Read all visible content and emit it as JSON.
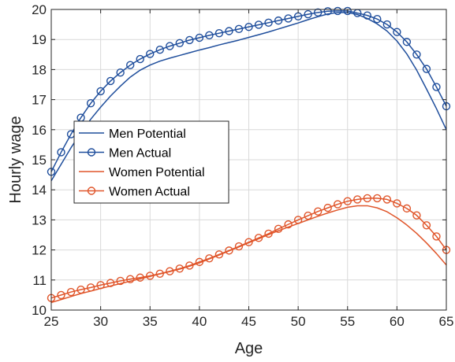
{
  "chart_data": {
    "type": "line",
    "title": "",
    "xlabel": "Age",
    "ylabel": "Hourly wage",
    "xlim": [
      25,
      65
    ],
    "ylim": [
      10,
      20
    ],
    "xticks": [
      25,
      30,
      35,
      40,
      45,
      50,
      55,
      60,
      65
    ],
    "yticks": [
      10,
      11,
      12,
      13,
      14,
      15,
      16,
      17,
      18,
      19,
      20
    ],
    "grid": true,
    "legend_position": "upper-left inside",
    "x": [
      25,
      26,
      27,
      28,
      29,
      30,
      31,
      32,
      33,
      34,
      35,
      36,
      37,
      38,
      39,
      40,
      41,
      42,
      43,
      44,
      45,
      46,
      47,
      48,
      49,
      50,
      51,
      52,
      53,
      54,
      55,
      56,
      57,
      58,
      59,
      60,
      61,
      62,
      63,
      64,
      65
    ],
    "series": [
      {
        "name": "Men Potential",
        "color": "#1f4e9c",
        "marker": "none",
        "values": [
          14.3,
          14.85,
          15.4,
          15.9,
          16.35,
          16.75,
          17.12,
          17.45,
          17.75,
          17.98,
          18.15,
          18.28,
          18.38,
          18.47,
          18.56,
          18.65,
          18.73,
          18.82,
          18.9,
          18.98,
          19.07,
          19.16,
          19.25,
          19.35,
          19.45,
          19.55,
          19.66,
          19.76,
          19.85,
          19.9,
          19.9,
          19.83,
          19.7,
          19.52,
          19.28,
          18.95,
          18.52,
          17.98,
          17.35,
          16.7,
          16.0
        ]
      },
      {
        "name": "Men Actual",
        "color": "#1f4e9c",
        "marker": "circle",
        "values": [
          14.6,
          15.25,
          15.85,
          16.4,
          16.88,
          17.28,
          17.62,
          17.9,
          18.15,
          18.35,
          18.52,
          18.66,
          18.78,
          18.88,
          18.98,
          19.06,
          19.14,
          19.21,
          19.28,
          19.35,
          19.42,
          19.49,
          19.56,
          19.63,
          19.7,
          19.77,
          19.84,
          19.9,
          19.94,
          19.95,
          19.95,
          19.88,
          19.8,
          19.68,
          19.5,
          19.25,
          18.92,
          18.5,
          18.02,
          17.42,
          16.78
        ]
      },
      {
        "name": "Women Potential",
        "color": "#e0552a",
        "marker": "none",
        "values": [
          10.25,
          10.35,
          10.45,
          10.55,
          10.63,
          10.72,
          10.8,
          10.88,
          10.96,
          11.04,
          11.12,
          11.2,
          11.28,
          11.36,
          11.46,
          11.57,
          11.7,
          11.83,
          11.97,
          12.1,
          12.24,
          12.37,
          12.51,
          12.64,
          12.76,
          12.88,
          13.0,
          13.12,
          13.23,
          13.33,
          13.42,
          13.47,
          13.47,
          13.4,
          13.27,
          13.07,
          12.83,
          12.55,
          12.23,
          11.88,
          11.5
        ]
      },
      {
        "name": "Women Actual",
        "color": "#e0552a",
        "marker": "circle",
        "values": [
          10.4,
          10.5,
          10.6,
          10.68,
          10.75,
          10.83,
          10.9,
          10.97,
          11.03,
          11.08,
          11.14,
          11.21,
          11.29,
          11.38,
          11.48,
          11.6,
          11.72,
          11.85,
          11.98,
          12.12,
          12.26,
          12.4,
          12.54,
          12.7,
          12.85,
          13.0,
          13.14,
          13.28,
          13.4,
          13.52,
          13.62,
          13.68,
          13.72,
          13.72,
          13.68,
          13.55,
          13.38,
          13.15,
          12.82,
          12.45,
          12.0
        ]
      }
    ]
  }
}
